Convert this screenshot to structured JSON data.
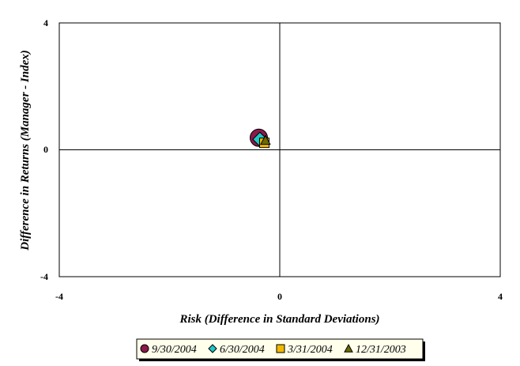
{
  "chart_data": {
    "type": "scatter",
    "title": "",
    "xlabel": "Risk (Difference in Standard Deviations)",
    "ylabel": "Difference in Returns (Manager - Index)",
    "xlim": [
      -4,
      4
    ],
    "ylim": [
      -4,
      4
    ],
    "x_ticks": [
      "-4",
      "0",
      "4"
    ],
    "y_ticks": [
      "4",
      "0",
      "-4"
    ],
    "grid": false,
    "legend_position": "bottom",
    "series": [
      {
        "name": "9/30/2004",
        "marker": "circle",
        "color": "#8b1a4a",
        "x": -0.38,
        "y": 0.38
      },
      {
        "name": "6/30/2004",
        "marker": "diamond",
        "color": "#1fc7c7",
        "x": -0.36,
        "y": 0.33
      },
      {
        "name": "3/31/2004",
        "marker": "square",
        "color": "#f2b800",
        "x": -0.28,
        "y": 0.22
      },
      {
        "name": "12/31/2003",
        "marker": "triangle",
        "color": "#6b6b00",
        "x": -0.26,
        "y": 0.3
      }
    ]
  }
}
